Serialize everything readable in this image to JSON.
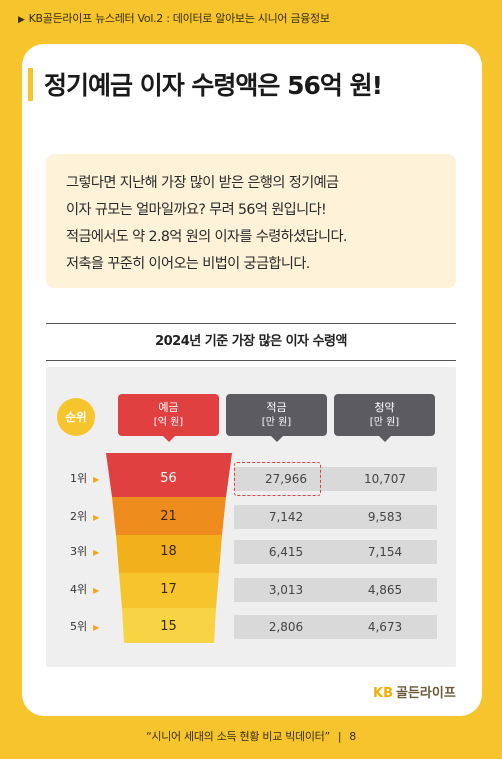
{
  "header": {
    "newsletter": "KB골든라이프 뉴스레터 Vol.2 : 데이터로 알아보는 시니어 금융정보"
  },
  "title": "정기예금 이자 수령액은 56억 원!",
  "intro_lines": [
    "그렇다면 지난해 가장 많이 받은 은행의 정기예금",
    "이자 규모는 얼마일까요? 무려 56억 원입니다!",
    "적금에서도 약 2.8억 원의 이자를 수령하셨답니다.",
    "저축을 꾸준히 이어오는 비법이 궁금합니다."
  ],
  "chart_data": {
    "type": "table",
    "title": "2024년 기준 가장 많은 이자 수령액",
    "rank_header": "순위",
    "columns": [
      {
        "name": "예금",
        "unit": "[억 원]",
        "color": "#E04040"
      },
      {
        "name": "적금",
        "unit": "[만 원]",
        "color": "#5C5C60"
      },
      {
        "name": "청약",
        "unit": "[만 원]",
        "color": "#5C5C60"
      }
    ],
    "rows": [
      {
        "rank": "1위",
        "deposit": "56",
        "savings": "27,966",
        "subscription": "10,707"
      },
      {
        "rank": "2위",
        "deposit": "21",
        "savings": "7,142",
        "subscription": "9,583"
      },
      {
        "rank": "3위",
        "deposit": "18",
        "savings": "6,415",
        "subscription": "7,154"
      },
      {
        "rank": "4위",
        "deposit": "17",
        "savings": "3,013",
        "subscription": "4,865"
      },
      {
        "rank": "5위",
        "deposit": "15",
        "savings": "2,806",
        "subscription": "4,673"
      }
    ],
    "highlight": {
      "row": 0,
      "column": "savings"
    }
  },
  "colors": {
    "funnel": [
      "#E04040",
      "#EF8C1E",
      "#F2B01C",
      "#F6C52E",
      "#F8D343"
    ],
    "background": "#F6C52E"
  },
  "logo": {
    "kb": "KB",
    "name": "골든라이프"
  },
  "footer": {
    "text": "“시니어 세대의 소득 현황 비교 빅데이터”",
    "separator": "|",
    "page": "8"
  }
}
